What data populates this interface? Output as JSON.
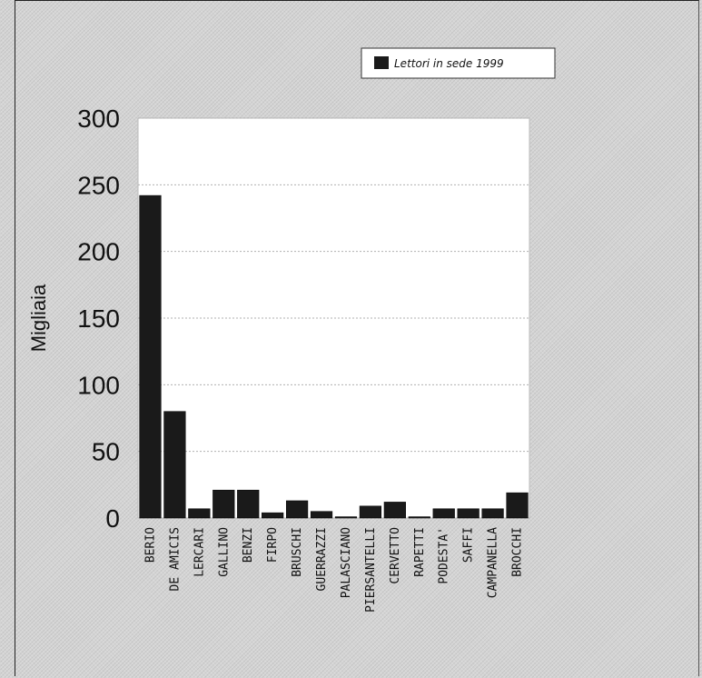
{
  "chart_data": {
    "type": "bar",
    "title": "",
    "xlabel": "",
    "ylabel": "Migliaia",
    "ylim": [
      0,
      300
    ],
    "yticks": [
      0,
      50,
      100,
      150,
      200,
      250,
      300
    ],
    "grid": true,
    "legend_position": "top-right",
    "categories": [
      "BERIO",
      "DE AMICIS",
      "LERCARI",
      "GALLINO",
      "BENZI",
      "FIRPO",
      "BRUSCHI",
      "GUERRAZZI",
      "PALASCIANO",
      "PIERSANTELLI",
      "CERVETTO",
      "RAPETTI",
      "PODESTA'",
      "SAFFI",
      "CAMPANELLA",
      "BROCCHI"
    ],
    "series": [
      {
        "name": "Lettori in sede 1999",
        "color": "#1a1a1a",
        "values": [
          242,
          80,
          7,
          21,
          21,
          4,
          13,
          5,
          1,
          9,
          12,
          1,
          7,
          7,
          7,
          19
        ]
      }
    ]
  }
}
